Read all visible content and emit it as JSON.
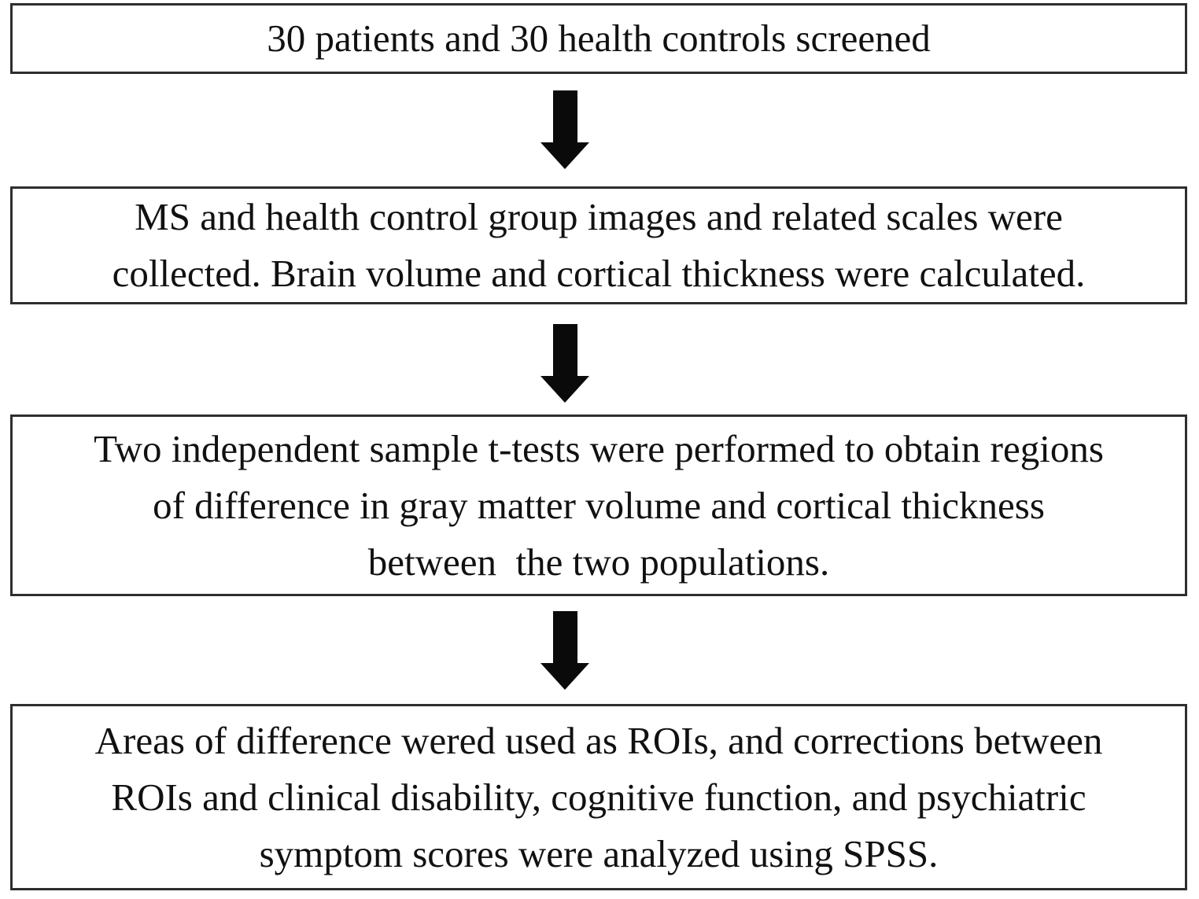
{
  "figure": {
    "type": "flowchart",
    "direction": "top-down",
    "colors": {
      "page_background": "#ffffff",
      "box_background": "#ffffff",
      "box_border": "#2e2e2e",
      "text": "#111111",
      "arrow": "#0a0a0a"
    },
    "boxes": [
      {
        "id": "box-1",
        "text": "30 patients and 30 health controls screened",
        "lines": [
          "30 patients and 30 health controls screened"
        ]
      },
      {
        "id": "box-2",
        "text": "MS and health control group images and related scales were collected. Brain volume and cortical thickness were calculated.",
        "lines": [
          "MS and health control group images and related scales were",
          "collected. Brain volume and cortical thickness were calculated."
        ]
      },
      {
        "id": "box-3",
        "text": "Two independent sample t-tests were performed to obtain regions of difference in gray matter volume and cortical thickness between  the two populations.",
        "lines": [
          "Two independent sample t-tests were performed to obtain regions",
          "of difference in gray matter volume and cortical thickness",
          "between  the two populations."
        ]
      },
      {
        "id": "box-4",
        "text": "Areas of difference wered used as ROIs, and corrections between ROIs and clinical disability, cognitive function, and psychiatric symptom scores were analyzed using SPSS.",
        "lines": [
          "Areas of difference wered used as ROIs, and corrections between",
          "ROIs and clinical disability, cognitive function, and psychiatric",
          "symptom scores were analyzed using SPSS."
        ]
      }
    ],
    "arrows": [
      {
        "name": "arrow-1",
        "from": "box-1",
        "to": "box-2",
        "direction": "down"
      },
      {
        "name": "arrow-2",
        "from": "box-2",
        "to": "box-3",
        "direction": "down"
      },
      {
        "name": "arrow-3",
        "from": "box-3",
        "to": "box-4",
        "direction": "down"
      }
    ]
  }
}
